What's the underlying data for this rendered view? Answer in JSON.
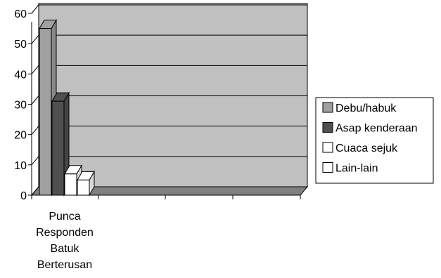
{
  "chart_data": {
    "type": "bar",
    "categories": [
      "Punca Responden Batuk Berterusan"
    ],
    "category_lines": [
      "Punca",
      "Responden",
      "Batuk",
      "Berterusan"
    ],
    "series": [
      {
        "name": "Debu/habuk",
        "values": [
          55
        ],
        "color": "#a0a0a0"
      },
      {
        "name": "Asap kenderaan",
        "values": [
          31
        ],
        "color": "#505050"
      },
      {
        "name": "Cuaca sejuk",
        "values": [
          7
        ],
        "color": "#ffffff"
      },
      {
        "name": "Lain-lain",
        "values": [
          5
        ],
        "color": "#ffffff"
      }
    ],
    "ylim": [
      0,
      60
    ],
    "yticks": [
      "0",
      "10",
      "20",
      "30",
      "40",
      "50",
      "60"
    ],
    "grid": true,
    "legend_position": "right",
    "wall_color": "#c0c0c0",
    "floor_color": "#808080",
    "title": "",
    "xlabel": "",
    "ylabel": ""
  }
}
